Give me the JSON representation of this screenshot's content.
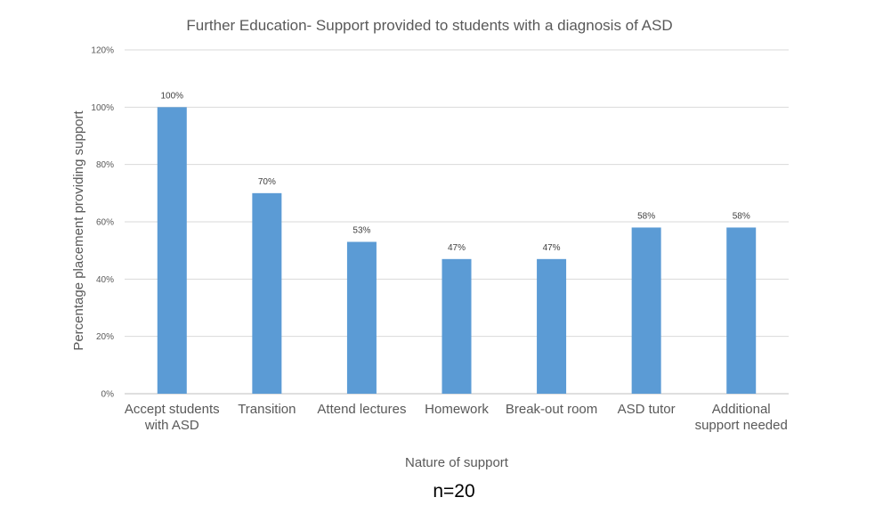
{
  "chart_data": {
    "type": "bar",
    "title": "Further Education- Support provided to students with a diagnosis of ASD",
    "xlabel": "Nature of support",
    "ylabel": "Percentage placement providing support",
    "categories": [
      "Accept students with ASD",
      "Transition",
      "Attend lectures",
      "Homework",
      "Break-out room",
      "ASD tutor",
      "Additional support needed"
    ],
    "values": [
      100,
      70,
      53,
      47,
      47,
      58,
      58
    ],
    "data_labels": [
      "100%",
      "70%",
      "53%",
      "47%",
      "47%",
      "58%",
      "58%"
    ],
    "yticks": [
      "0%",
      "20%",
      "40%",
      "60%",
      "80%",
      "100%",
      "120%"
    ],
    "ylim": [
      0,
      120
    ],
    "grid": true,
    "bar_color": "#5B9BD5",
    "annotation": "n=20"
  }
}
